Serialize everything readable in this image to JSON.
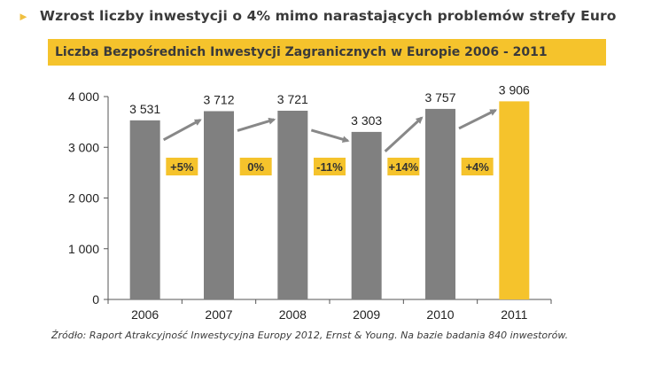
{
  "headline": "Wzrost liczby inwestycji o 4% mimo narastających problemów strefy Euro",
  "source_note": "Źródło: Raport Atrakcyjność Inwestycyjna Europy 2012, Ernst & Young. Na bazie badania 840 inwestorów.",
  "colors": {
    "accent": "#f5c32c",
    "bar": "#808080",
    "highlight_bar": "#f5c32c",
    "text": "#3a3a3a"
  },
  "chart_data": {
    "type": "bar",
    "title": "Liczba Bezpośrednich Inwestycji Zagranicznych w Europie 2006 - 2011",
    "categories": [
      "2006",
      "2007",
      "2008",
      "2009",
      "2010",
      "2011"
    ],
    "values": [
      3531,
      3712,
      3721,
      3303,
      3757,
      3906
    ],
    "value_labels": [
      "3 531",
      "3 712",
      "3 721",
      "3 303",
      "3 757",
      "3 906"
    ],
    "highlight_index": 5,
    "ylim": [
      0,
      4000
    ],
    "yticks": [
      0,
      1000,
      2000,
      3000,
      4000
    ],
    "ytick_labels": [
      "0",
      "1 000",
      "2 000",
      "3 000",
      "4 000"
    ],
    "xlabel": "",
    "ylabel": "",
    "changes": [
      "+5%",
      "0%",
      "-11%",
      "+14%",
      "+4%"
    ]
  }
}
